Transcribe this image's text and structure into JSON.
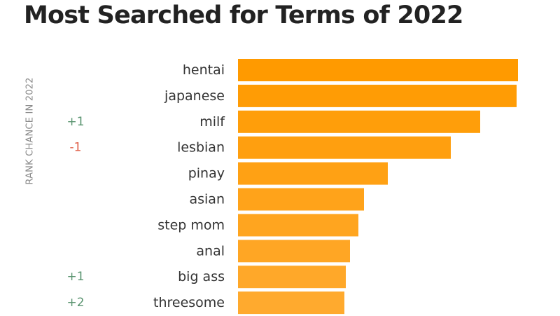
{
  "chart_data": {
    "type": "bar",
    "orientation": "horizontal",
    "title": "Most Searched for Terms of 2022",
    "side_label": "RANK CHANCE IN 2022",
    "categories": [
      "hentai",
      "japanese",
      "milf",
      "lesbian",
      "pinay",
      "asian",
      "step mom",
      "anal",
      "big ass",
      "threesome"
    ],
    "values": [
      100,
      99.5,
      86.5,
      76,
      53.5,
      45,
      43,
      40,
      38.5,
      38
    ],
    "rank_changes": [
      "",
      "",
      "+1",
      "-1",
      "",
      "",
      "",
      "",
      "+1",
      "+2"
    ],
    "colors": {
      "bar_top": "#ff9a00",
      "bar_bottom": "#ffaa2e",
      "positive": "#5a9470",
      "negative": "#e0614a"
    },
    "xlim": [
      0,
      100
    ],
    "grid": false,
    "legend": "none"
  }
}
